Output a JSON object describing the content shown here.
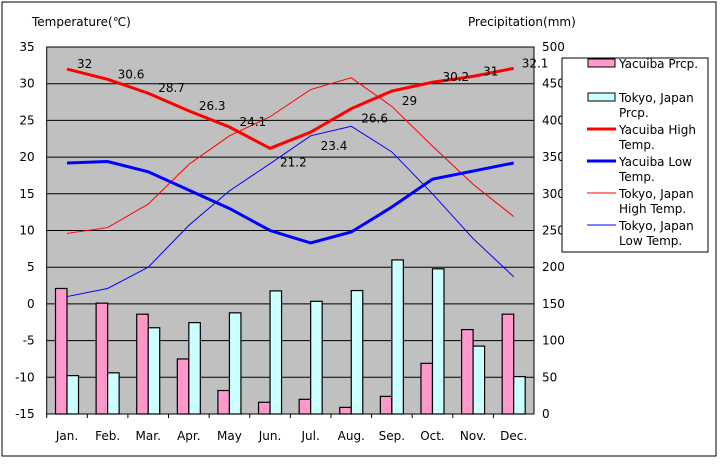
{
  "chart_data": {
    "type": "bar+line",
    "left_axis_title": "Temperature(℃)",
    "right_axis_title": "Precipitation(mm)",
    "categories": [
      "Jan.",
      "Feb.",
      "Mar.",
      "Apr.",
      "May",
      "Jun.",
      "Jul.",
      "Aug.",
      "Sep.",
      "Oct.",
      "Nov.",
      "Dec."
    ],
    "ylim_left": [
      -15,
      35
    ],
    "yticks_left": [
      35,
      30,
      25,
      20,
      15,
      10,
      5,
      0,
      -5,
      -10,
      -15
    ],
    "ylim_right": [
      0,
      500
    ],
    "yticks_right": [
      500,
      450,
      400,
      350,
      300,
      250,
      200,
      150,
      100,
      50,
      0
    ],
    "grid": true,
    "legend_position": "right",
    "bars": [
      {
        "name": "Yacuiba Prcp.",
        "color": "#ff99cc",
        "values": [
          171,
          151,
          136,
          75,
          32,
          16,
          20,
          9,
          24,
          69,
          115,
          136
        ]
      },
      {
        "name": "Tokyo, Japan Prcp.",
        "color": "#ccffff",
        "values": [
          52.3,
          56.1,
          117.5,
          124.5,
          137.8,
          167.7,
          153.5,
          168.2,
          209.9,
          197.8,
          92.5,
          51.0
        ]
      }
    ],
    "lines": [
      {
        "name": "Yacuiba High Temp.",
        "color": "#ff0000",
        "width": 3,
        "labels": true,
        "values": [
          32,
          30.6,
          28.7,
          26.3,
          24.1,
          21.2,
          23.4,
          26.6,
          29,
          30.2,
          31,
          32.1
        ],
        "value_labels": [
          "32",
          "30.6",
          "28.7",
          "26.3",
          "24.1",
          "21.2",
          "23.4",
          "26.6",
          "29",
          "30.2",
          "31",
          "32.1"
        ]
      },
      {
        "name": "Yacuiba Low Temp.",
        "color": "#0000ff",
        "width": 3,
        "values": [
          19.2,
          19.4,
          18,
          15.5,
          13,
          10,
          8.3,
          9.8,
          13.2,
          17,
          18.1,
          19.2
        ]
      },
      {
        "name": "Tokyo, Japan High Temp.",
        "color": "#ff0000",
        "width": 1,
        "values": [
          9.6,
          10.4,
          13.6,
          19.0,
          22.9,
          25.5,
          29.2,
          30.8,
          26.9,
          21.5,
          16.3,
          11.9
        ]
      },
      {
        "name": "Tokyo, Japan Low Temp.",
        "color": "#0000ff",
        "width": 1,
        "values": [
          1.0,
          2.1,
          5.0,
          10.7,
          15.4,
          19.1,
          22.9,
          24.2,
          20.7,
          15.0,
          8.9,
          3.7
        ]
      }
    ],
    "legend": [
      {
        "label": [
          "Yacuiba Prcp."
        ],
        "kind": "bar",
        "color": "#ff99cc"
      },
      {
        "label": [
          "Tokyo, Japan",
          "Prcp."
        ],
        "kind": "bar",
        "color": "#ccffff"
      },
      {
        "label": [
          "Yacuiba High",
          "Temp."
        ],
        "kind": "line",
        "color": "#ff0000",
        "width": 3
      },
      {
        "label": [
          "Yacuiba Low",
          "Temp."
        ],
        "kind": "line",
        "color": "#0000ff",
        "width": 3
      },
      {
        "label": [
          "Tokyo, Japan",
          "High Temp."
        ],
        "kind": "line",
        "color": "#ff0000",
        "width": 1
      },
      {
        "label": [
          "Tokyo, Japan",
          "Low Temp."
        ],
        "kind": "line",
        "color": "#0000ff",
        "width": 1
      }
    ]
  }
}
